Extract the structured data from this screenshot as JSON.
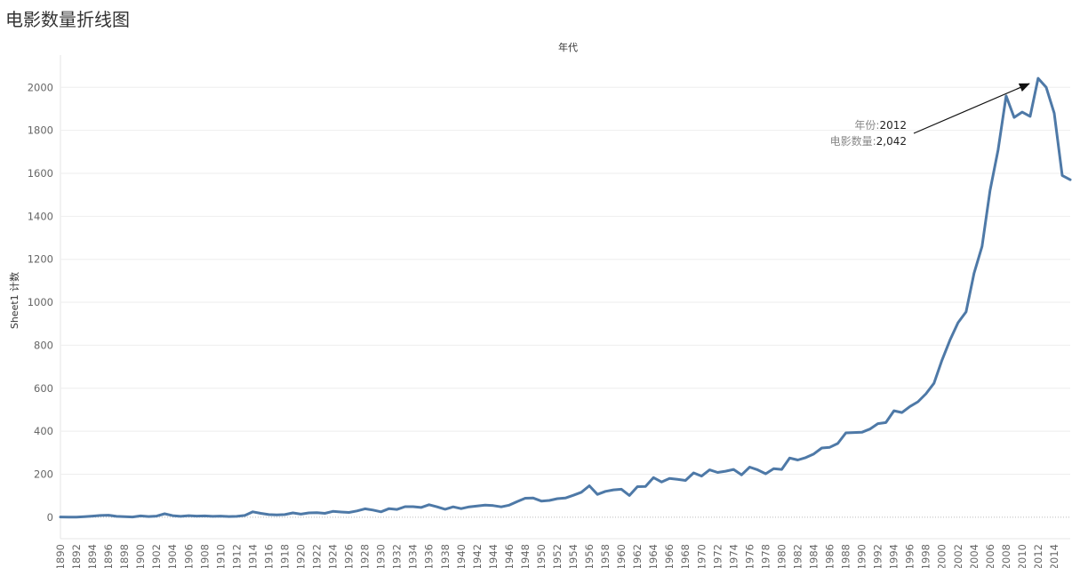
{
  "page": {
    "title": "电影数量折线图"
  },
  "chart_data": {
    "type": "line",
    "title": "电影数量折线图",
    "xlabel": "年代",
    "ylabel": "Sheet1 计数",
    "xlim": [
      1890,
      2016
    ],
    "ylim": [
      -100,
      2150
    ],
    "yticks": [
      0,
      200,
      400,
      600,
      800,
      1000,
      1200,
      1400,
      1600,
      1800,
      2000
    ],
    "xticks": [
      1890,
      1892,
      1894,
      1896,
      1898,
      1900,
      1902,
      1904,
      1906,
      1908,
      1910,
      1912,
      1914,
      1916,
      1918,
      1920,
      1922,
      1924,
      1926,
      1928,
      1930,
      1932,
      1934,
      1936,
      1938,
      1940,
      1942,
      1944,
      1946,
      1948,
      1950,
      1952,
      1954,
      1956,
      1958,
      1960,
      1962,
      1964,
      1966,
      1968,
      1970,
      1972,
      1974,
      1976,
      1978,
      1980,
      1982,
      1984,
      1986,
      1988,
      1990,
      1992,
      1994,
      1996,
      1998,
      2000,
      2002,
      2004,
      2006,
      2008,
      2010,
      2012,
      2014
    ],
    "grid": true,
    "series": [
      {
        "color": "#4e79a7",
        "x": [
          1890,
          1891,
          1892,
          1893,
          1894,
          1895,
          1896,
          1897,
          1898,
          1899,
          1900,
          1901,
          1902,
          1903,
          1904,
          1905,
          1906,
          1907,
          1908,
          1909,
          1910,
          1911,
          1912,
          1913,
          1914,
          1915,
          1916,
          1917,
          1918,
          1919,
          1920,
          1921,
          1922,
          1923,
          1924,
          1925,
          1926,
          1927,
          1928,
          1929,
          1930,
          1931,
          1932,
          1933,
          1934,
          1935,
          1936,
          1937,
          1938,
          1939,
          1940,
          1941,
          1942,
          1943,
          1944,
          1945,
          1946,
          1947,
          1948,
          1949,
          1950,
          1951,
          1952,
          1953,
          1954,
          1955,
          1956,
          1957,
          1958,
          1959,
          1960,
          1961,
          1962,
          1963,
          1964,
          1965,
          1966,
          1967,
          1968,
          1969,
          1970,
          1971,
          1972,
          1973,
          1974,
          1975,
          1976,
          1977,
          1978,
          1979,
          1980,
          1981,
          1982,
          1983,
          1984,
          1985,
          1986,
          1987,
          1988,
          1989,
          1990,
          1991,
          1992,
          1993,
          1994,
          1995,
          1996,
          1997,
          1998,
          1999,
          2000,
          2001,
          2002,
          2003,
          2004,
          2005,
          2006,
          2007,
          2008,
          2009,
          2010,
          2011,
          2012,
          2013,
          2014,
          2015,
          2016
        ],
        "values": [
          1,
          0,
          0,
          2,
          5,
          8,
          9,
          4,
          2,
          1,
          6,
          3,
          5,
          16,
          7,
          4,
          7,
          5,
          6,
          4,
          5,
          3,
          4,
          8,
          25,
          18,
          12,
          11,
          12,
          20,
          14,
          20,
          21,
          18,
          27,
          24,
          22,
          29,
          39,
          33,
          25,
          40,
          36,
          49,
          49,
          45,
          58,
          48,
          37,
          48,
          40,
          48,
          52,
          56,
          54,
          48,
          56,
          73,
          88,
          89,
          75,
          78,
          86,
          89,
          102,
          116,
          146,
          106,
          120,
          127,
          130,
          101,
          142,
          143,
          184,
          164,
          180,
          176,
          171,
          206,
          191,
          220,
          208,
          214,
          222,
          197,
          233,
          220,
          202,
          226,
          222,
          275,
          266,
          277,
          294,
          322,
          325,
          343,
          392,
          394,
          395,
          410,
          435,
          440,
          495,
          487,
          515,
          537,
          574,
          623,
          730,
          825,
          905,
          955,
          1135,
          1260,
          1520,
          1710,
          1960,
          1860,
          1885,
          1865,
          2042,
          2000,
          1880,
          1590,
          1570
        ]
      }
    ],
    "annotation": {
      "year_label": "年份:",
      "year_value": "2012",
      "count_label": "电影数量:",
      "count_value": "2,042",
      "target_x": 2012,
      "target_y": 2042
    }
  }
}
